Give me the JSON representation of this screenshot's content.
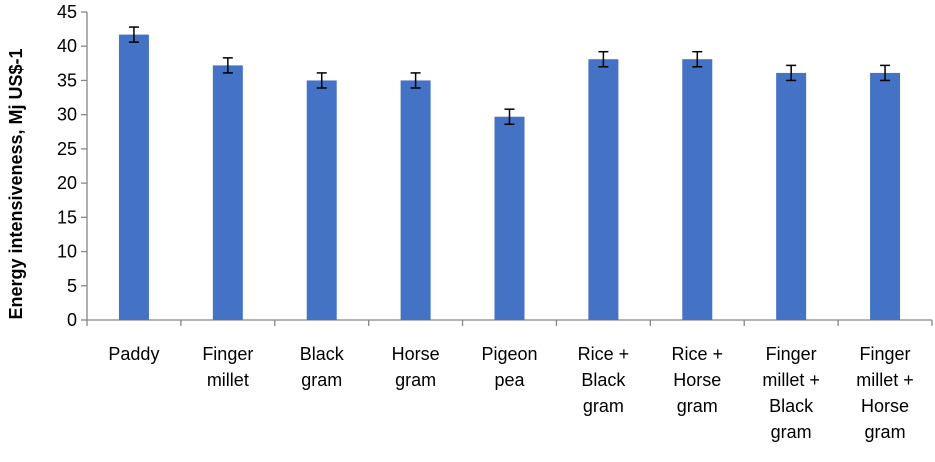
{
  "chart_data": {
    "type": "bar",
    "title": "",
    "xlabel": "",
    "ylabel": "Energy intensiveness, Mj US$-1",
    "ylim": [
      0,
      45
    ],
    "yticks": [
      0,
      5,
      10,
      15,
      20,
      25,
      30,
      35,
      40,
      45
    ],
    "grid": false,
    "legend": "none",
    "bar_color": "#4472C4",
    "categories": [
      [
        "Paddy"
      ],
      [
        "Finger",
        "millet"
      ],
      [
        "Black",
        "gram"
      ],
      [
        "Horse",
        "gram"
      ],
      [
        "Pigeon",
        "pea"
      ],
      [
        "Rice +",
        "Black",
        "gram"
      ],
      [
        "Rice +",
        "Horse",
        "gram"
      ],
      [
        "Finger",
        "millet +",
        "Black",
        "gram"
      ],
      [
        "Finger",
        "millet +",
        "Horse",
        "gram"
      ]
    ],
    "values": [
      41.7,
      37.2,
      35.0,
      35.0,
      29.7,
      38.1,
      38.1,
      36.1,
      36.1
    ],
    "errors": [
      1.1,
      1.1,
      1.1,
      1.1,
      1.1,
      1.1,
      1.1,
      1.1,
      1.1
    ]
  }
}
